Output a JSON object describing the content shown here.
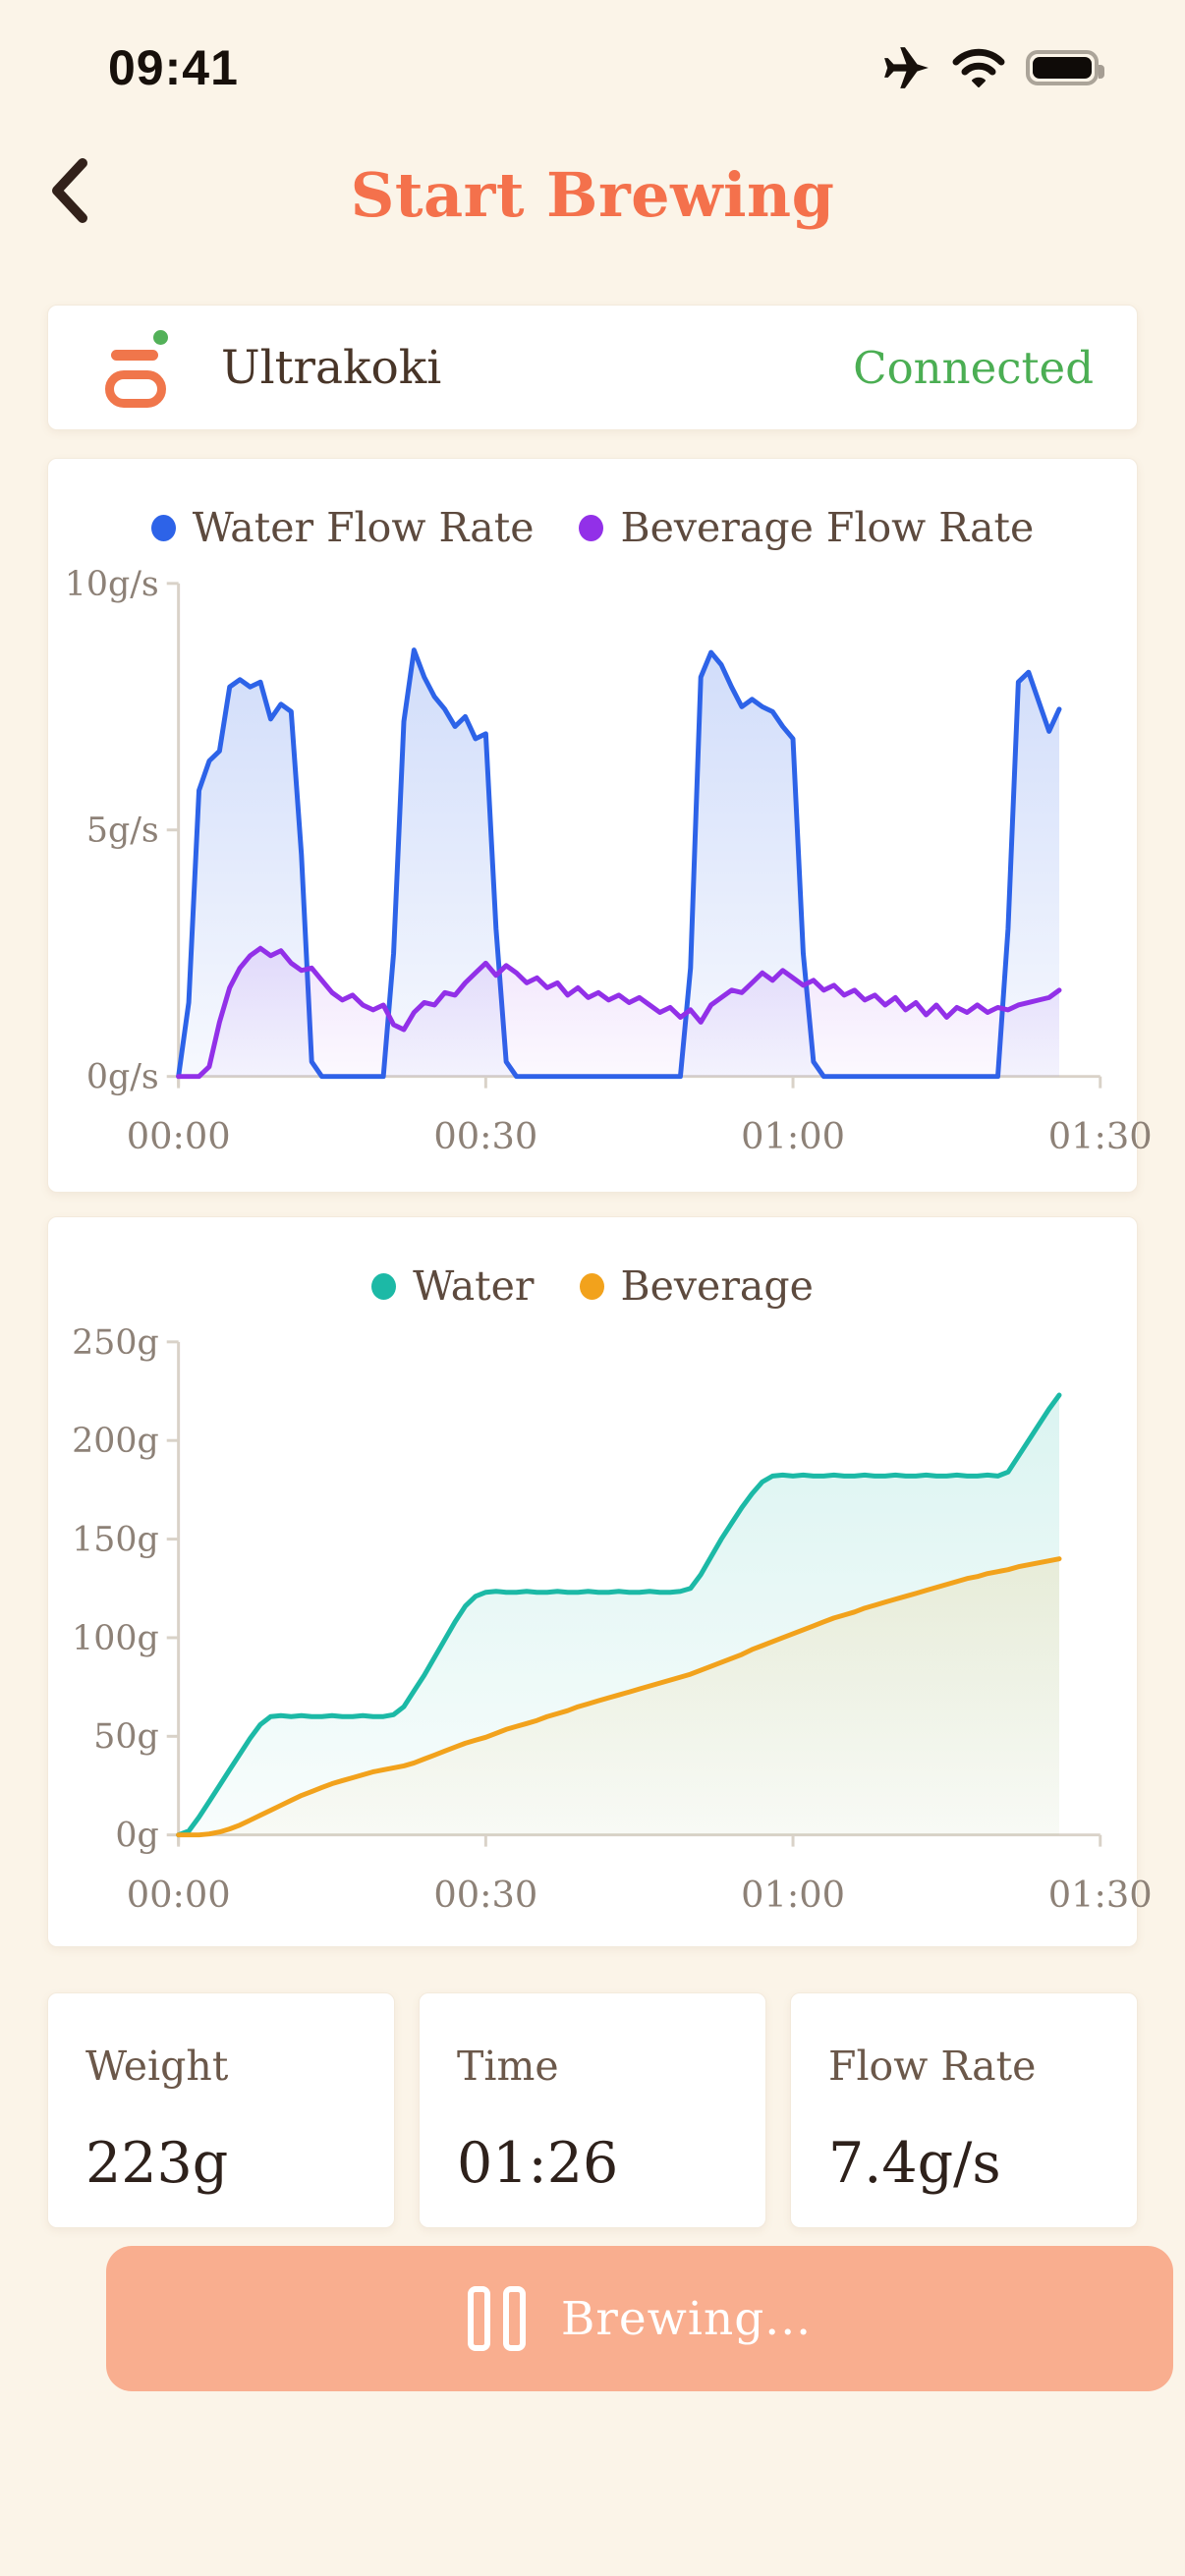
{
  "status_bar": {
    "time": "09:41"
  },
  "header": {
    "title": "Start Brewing"
  },
  "device": {
    "name": "Ultrakoki",
    "status": "Connected"
  },
  "stats": [
    {
      "label": "Weight",
      "value": "223g"
    },
    {
      "label": "Time",
      "value": "01:26"
    },
    {
      "label": "Flow Rate",
      "value": "7.4g/s"
    }
  ],
  "brew_button": {
    "label": "Brewing..."
  },
  "icons": {
    "back": "chevron-left",
    "status": [
      "airplane",
      "wifi-full",
      "battery-full"
    ],
    "device": "coffee-grinder",
    "brew": "pause"
  },
  "colors": {
    "background": "#FBF4E8",
    "card": "#FFFFFF",
    "title_orange": "#F4714C",
    "text_dark": "#2E211B",
    "text_medium": "#5D4A3E",
    "text_muted": "#8D8177",
    "connected_green": "#4BAE53",
    "button_salmon": "#F9AE8F",
    "water_flow_blue": "#2D63E8",
    "beverage_flow_purple": "#9230E8",
    "water_teal": "#1CB9A6",
    "beverage_orange": "#F2A21C",
    "axis": "#D9D2C8"
  },
  "chart_data": [
    {
      "type": "area",
      "title": "",
      "xlabel": "",
      "ylabel": "",
      "legend_position": "top",
      "grid": false,
      "xlim": [
        0,
        90
      ],
      "ylim": [
        0,
        10
      ],
      "xticks": [
        {
          "t": 0,
          "label": "00:00"
        },
        {
          "t": 30,
          "label": "00:30"
        },
        {
          "t": 60,
          "label": "01:00"
        },
        {
          "t": 90,
          "label": "01:30"
        }
      ],
      "yticks": [
        {
          "v": 0,
          "label": "0g/s"
        },
        {
          "v": 5,
          "label": "5g/s"
        },
        {
          "v": 10,
          "label": "10g/s"
        }
      ],
      "x_step_seconds": 1,
      "series": [
        {
          "name": "Water Flow Rate",
          "color": "#2D63E8",
          "fill_opacity_top": 0.22,
          "fill_opacity_bottom": 0.04,
          "values": [
            0,
            1.5,
            5.8,
            6.4,
            6.6,
            7.9,
            8.05,
            7.9,
            8.0,
            7.25,
            7.55,
            7.4,
            4.5,
            0.3,
            0,
            0,
            0,
            0,
            0,
            0,
            0,
            2.5,
            7.2,
            8.65,
            8.1,
            7.7,
            7.45,
            7.1,
            7.3,
            6.85,
            6.95,
            3.0,
            0.3,
            0,
            0,
            0,
            0,
            0,
            0,
            0,
            0,
            0,
            0,
            0,
            0,
            0,
            0,
            0,
            0,
            0,
            2.2,
            8.1,
            8.6,
            8.35,
            7.9,
            7.5,
            7.65,
            7.5,
            7.4,
            7.1,
            6.85,
            2.5,
            0.3,
            0,
            0,
            0,
            0,
            0,
            0,
            0,
            0,
            0,
            0,
            0,
            0,
            0,
            0,
            0,
            0,
            0,
            0,
            3.0,
            8.0,
            8.2,
            7.6,
            7.0,
            7.45
          ]
        },
        {
          "name": "Beverage Flow Rate",
          "color": "#9230E8",
          "fill_opacity_top": 0.12,
          "fill_opacity_bottom": 0.03,
          "values": [
            0,
            0,
            0,
            0.2,
            1.1,
            1.8,
            2.2,
            2.45,
            2.6,
            2.45,
            2.55,
            2.3,
            2.15,
            2.2,
            1.95,
            1.7,
            1.55,
            1.65,
            1.45,
            1.35,
            1.45,
            1.05,
            0.95,
            1.3,
            1.5,
            1.45,
            1.7,
            1.65,
            1.9,
            2.1,
            2.3,
            2.05,
            2.25,
            2.1,
            1.9,
            2.0,
            1.8,
            1.9,
            1.65,
            1.8,
            1.6,
            1.7,
            1.55,
            1.65,
            1.5,
            1.6,
            1.45,
            1.3,
            1.4,
            1.2,
            1.35,
            1.1,
            1.45,
            1.6,
            1.75,
            1.7,
            1.9,
            2.1,
            1.95,
            2.15,
            2.0,
            1.85,
            1.95,
            1.75,
            1.85,
            1.65,
            1.75,
            1.55,
            1.65,
            1.45,
            1.6,
            1.35,
            1.5,
            1.25,
            1.45,
            1.2,
            1.4,
            1.3,
            1.45,
            1.3,
            1.4,
            1.35,
            1.45,
            1.5,
            1.55,
            1.6,
            1.75
          ]
        }
      ]
    },
    {
      "type": "area",
      "title": "",
      "xlabel": "",
      "ylabel": "",
      "legend_position": "top",
      "grid": false,
      "xlim": [
        0,
        90
      ],
      "ylim": [
        0,
        250
      ],
      "xticks": [
        {
          "t": 0,
          "label": "00:00"
        },
        {
          "t": 30,
          "label": "00:30"
        },
        {
          "t": 60,
          "label": "01:00"
        },
        {
          "t": 90,
          "label": "01:30"
        }
      ],
      "yticks": [
        {
          "v": 0,
          "label": "0g"
        },
        {
          "v": 50,
          "label": "50g"
        },
        {
          "v": 100,
          "label": "100g"
        },
        {
          "v": 150,
          "label": "150g"
        },
        {
          "v": 200,
          "label": "200g"
        },
        {
          "v": 250,
          "label": "250g"
        }
      ],
      "x_step_seconds": 1,
      "series": [
        {
          "name": "Water",
          "color": "#1CB9A6",
          "fill_opacity_top": 0.16,
          "fill_opacity_bottom": 0.03,
          "values": [
            0,
            2,
            9,
            17,
            25,
            33,
            41,
            49,
            56,
            60,
            60.5,
            60,
            60.5,
            60,
            60,
            60.5,
            60,
            60,
            60.5,
            60,
            60,
            61,
            65,
            73,
            81,
            90,
            99,
            108,
            116,
            121,
            123,
            123.5,
            123,
            123,
            123.5,
            123,
            123,
            123.5,
            123,
            123,
            123.5,
            123,
            123,
            123.5,
            123,
            123,
            123.5,
            123,
            123,
            123.5,
            125,
            132,
            141,
            150,
            158,
            166,
            173,
            179,
            182,
            182.5,
            182,
            182.5,
            182,
            182,
            182.5,
            182,
            182,
            182.5,
            182,
            182,
            182.5,
            182,
            182,
            182.5,
            182,
            182,
            182.5,
            182,
            182,
            182.5,
            182,
            184,
            192,
            200,
            208,
            216,
            223
          ]
        },
        {
          "name": "Beverage",
          "color": "#F2A21C",
          "fill_opacity_top": 0.13,
          "fill_opacity_bottom": 0.03,
          "values": [
            0,
            0,
            0,
            0.5,
            1.5,
            3,
            5,
            7.5,
            10,
            12.5,
            15,
            17.5,
            20,
            22,
            24,
            26,
            27.5,
            29,
            30.5,
            32,
            33,
            34,
            35,
            36.5,
            38.5,
            40.5,
            42.5,
            44.5,
            46.5,
            48,
            49.5,
            51.5,
            53.5,
            55,
            56.5,
            58,
            60,
            61.5,
            63,
            65,
            66.5,
            68,
            69.5,
            71,
            72.5,
            74,
            75.5,
            77,
            78.5,
            80,
            81.5,
            83.5,
            85.5,
            87.5,
            89.5,
            91.5,
            94,
            96,
            98,
            100,
            102,
            104,
            106,
            108,
            110,
            111.5,
            113,
            115,
            116.5,
            118,
            119.5,
            121,
            122.5,
            124,
            125.5,
            127,
            128.5,
            130,
            131,
            132.5,
            133.5,
            134.5,
            136,
            137,
            138,
            139,
            140
          ]
        }
      ]
    }
  ]
}
